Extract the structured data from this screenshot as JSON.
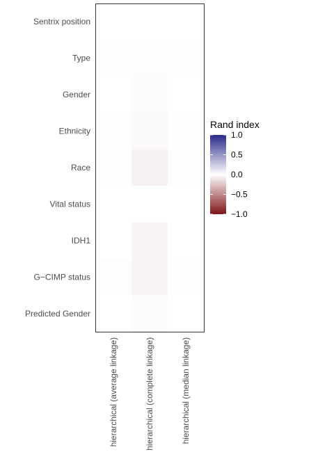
{
  "chart_data": {
    "type": "heatmap",
    "title": "",
    "xlabel": "",
    "ylabel": "",
    "x_categories": [
      "hierarchical (average linkage)",
      "hierarchical (complete linkage)",
      "hierarchical (median linkage)"
    ],
    "y_categories": [
      "Sentrix position",
      "Type",
      "Gender",
      "Ethnicity",
      "Race",
      "Vital status",
      "IDH1",
      "G−CIMP status",
      "Predicted Gender"
    ],
    "values": [
      [
        0.0,
        0.0,
        0.0
      ],
      [
        -0.01,
        -0.01,
        -0.005
      ],
      [
        0.0,
        0.02,
        0.0
      ],
      [
        -0.01,
        -0.03,
        -0.005
      ],
      [
        -0.01,
        -0.06,
        -0.01
      ],
      [
        0.0,
        0.0,
        0.0
      ],
      [
        0.0,
        -0.05,
        0.0
      ],
      [
        -0.01,
        -0.05,
        -0.005
      ],
      [
        0.0,
        0.02,
        0.0
      ]
    ],
    "legend": {
      "title": "Rand index",
      "placement": "right",
      "range": [
        -1.0,
        1.0
      ],
      "ticks": [
        1.0,
        0.5,
        0.0,
        -0.5,
        -1.0
      ],
      "tick_labels": [
        "1.0",
        "0.5",
        "0.0",
        "−0.5",
        "−1.0"
      ],
      "colors": {
        "low": "#7f1416",
        "mid": "#ffffff",
        "high": "#2a2a8c"
      }
    },
    "grid": false,
    "panel_border": true
  }
}
